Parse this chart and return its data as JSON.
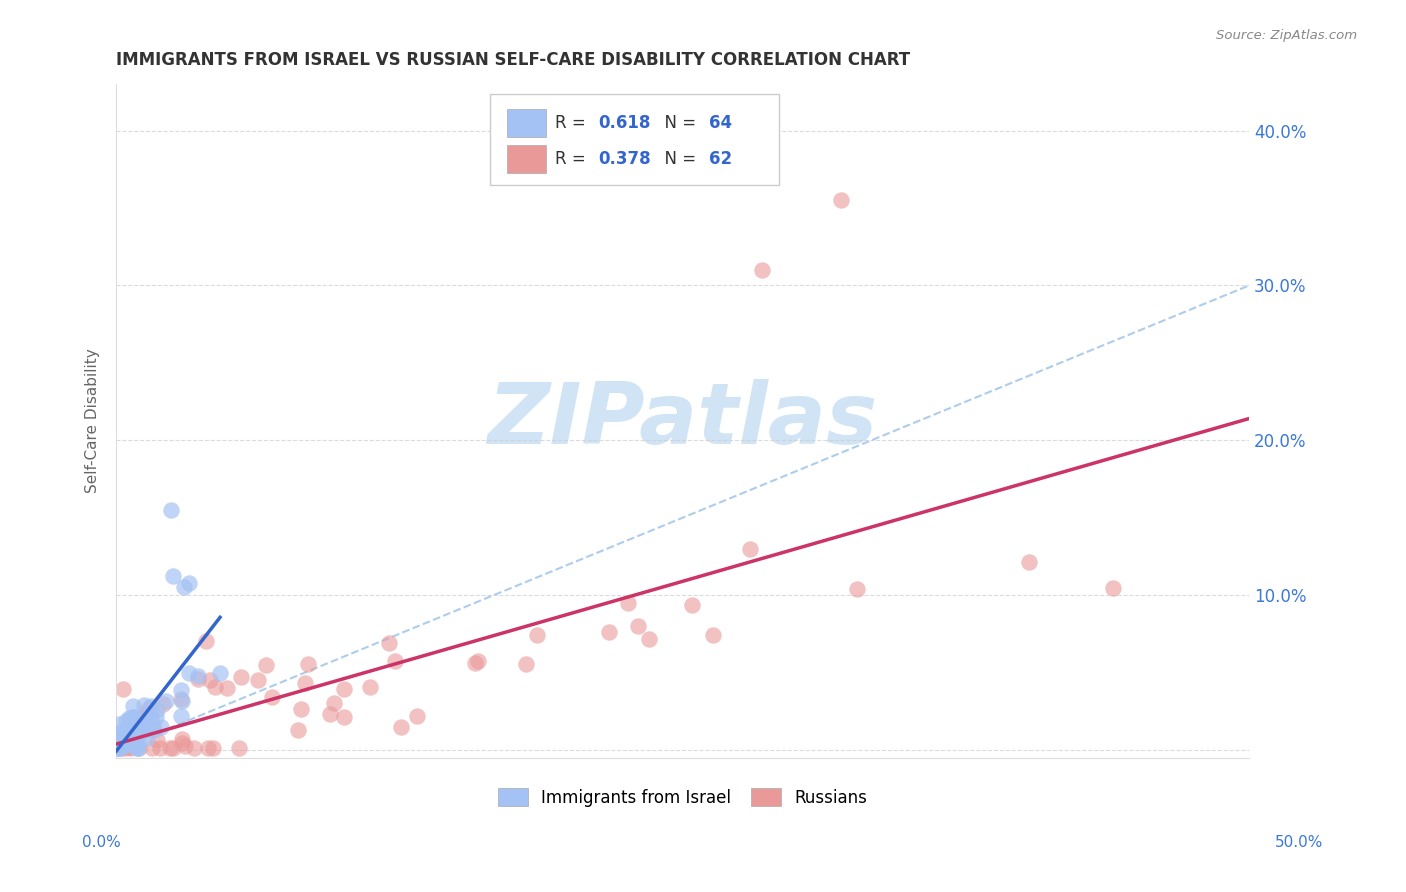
{
  "title": "IMMIGRANTS FROM ISRAEL VS RUSSIAN SELF-CARE DISABILITY CORRELATION CHART",
  "source": "Source: ZipAtlas.com",
  "ylabel": "Self-Care Disability",
  "xlim": [
    0.0,
    0.5
  ],
  "ylim": [
    -0.005,
    0.43
  ],
  "right_ytick_labels": [
    "10.0%",
    "20.0%",
    "30.0%",
    "40.0%"
  ],
  "right_ytick_positions": [
    0.1,
    0.2,
    0.3,
    0.4
  ],
  "blue_color": "#a4c2f4",
  "pink_color": "#ea9999",
  "blue_line_color": "#3366cc",
  "pink_line_color": "#cc3366",
  "dashed_line_color": "#9fc5e8",
  "text_color": "#3c78d8",
  "title_color": "#333333",
  "background_color": "#ffffff",
  "grid_color": "#cccccc",
  "watermark_color": "#d0e4f5",
  "legend_blue_text_color": "#3366cc",
  "legend_pink_text_color": "#cc3366",
  "legend_black_color": "#333333"
}
